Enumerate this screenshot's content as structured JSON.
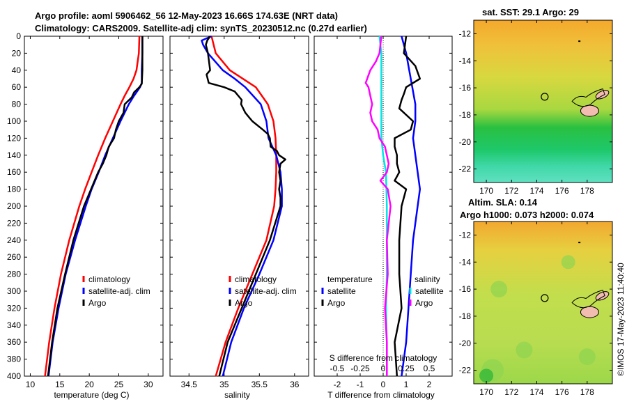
{
  "header": {
    "line1": "Argo profile: aoml 5906462_56 12-May-2023 16.66S 174.63E (NRT data)",
    "line2": "Climatology: CARS2009. Satellite-adj clim: synTS_20230512.nc (0.27d earlier)"
  },
  "colors": {
    "climatology": "#ff0000",
    "satellite": "#0000ff",
    "argo": "#000000",
    "s_diff": "#ff00ff",
    "s_sat": "#00e5e5"
  },
  "depth_axis": {
    "ticks": [
      0,
      20,
      40,
      60,
      80,
      100,
      120,
      140,
      160,
      180,
      200,
      220,
      240,
      260,
      280,
      300,
      320,
      340,
      360,
      380,
      400
    ]
  },
  "chart_data": [
    {
      "type": "line",
      "name": "temperature",
      "xlabel": "temperature (deg C)",
      "ylabel": "",
      "xlim": [
        9,
        32.5
      ],
      "ylim": [
        400,
        0
      ],
      "xticks": [
        10,
        15,
        20,
        25,
        30
      ],
      "legend": {
        "position": "lower-middle",
        "entries": [
          "climatology",
          "satellite-adj. clim",
          "Argo"
        ]
      },
      "series": [
        {
          "name": "climatology",
          "color": "#ff0000",
          "depth": [
            0,
            20,
            40,
            50,
            60,
            70,
            80,
            100,
            120,
            140,
            160,
            180,
            200,
            240,
            280,
            320,
            360,
            400
          ],
          "values": [
            28.5,
            28.4,
            28.0,
            27.5,
            26.8,
            26.0,
            25.3,
            24.0,
            22.7,
            21.5,
            20.4,
            19.3,
            18.3,
            16.6,
            15.2,
            14.1,
            13.2,
            12.5
          ]
        },
        {
          "name": "satellite-adj. clim",
          "color": "#0000ff",
          "depth": [
            0,
            20,
            40,
            55,
            60,
            70,
            80,
            100,
            120,
            140,
            160,
            180,
            200,
            240,
            280,
            320,
            360,
            400
          ],
          "values": [
            29.0,
            29.0,
            28.9,
            28.9,
            28.6,
            27.6,
            26.7,
            25.3,
            24.0,
            22.7,
            21.6,
            20.4,
            19.4,
            17.6,
            16.0,
            14.8,
            13.8,
            13.1
          ]
        },
        {
          "name": "Argo",
          "color": "#000000",
          "depth": [
            0,
            20,
            40,
            56,
            60,
            66,
            72,
            80,
            90,
            100,
            110,
            120,
            130,
            140,
            150,
            160,
            180,
            200,
            240,
            280,
            320,
            360,
            400
          ],
          "values": [
            29.0,
            29.0,
            29.0,
            28.9,
            28.5,
            27.6,
            27.2,
            26.0,
            25.8,
            25.0,
            24.5,
            24.2,
            23.3,
            22.9,
            22.3,
            21.5,
            20.3,
            19.1,
            17.3,
            15.9,
            14.6,
            13.7,
            13.0
          ]
        }
      ]
    },
    {
      "type": "line",
      "name": "salinity",
      "xlabel": "salinity",
      "ylabel": "",
      "xlim": [
        34.23,
        36.2
      ],
      "ylim": [
        400,
        0
      ],
      "xticks": [
        34.5,
        35,
        35.5,
        36
      ],
      "legend": {
        "position": "lower-middle",
        "entries": [
          "climatology",
          "satellite-adj. clim",
          "Argo"
        ]
      },
      "series": [
        {
          "name": "climatology",
          "color": "#ff0000",
          "depth": [
            0,
            20,
            40,
            60,
            80,
            100,
            120,
            140,
            160,
            180,
            200,
            240,
            280,
            320,
            360,
            400
          ],
          "values": [
            34.82,
            34.88,
            35.08,
            35.45,
            35.62,
            35.7,
            35.73,
            35.74,
            35.74,
            35.73,
            35.71,
            35.6,
            35.4,
            35.2,
            35.02,
            34.88
          ]
        },
        {
          "name": "satellite-adj. clim",
          "color": "#0000ff",
          "depth": [
            0,
            5,
            10,
            20,
            40,
            50,
            60,
            80,
            100,
            120,
            140,
            160,
            180,
            200,
            240,
            280,
            320,
            360,
            400
          ],
          "values": [
            34.82,
            34.68,
            34.7,
            34.77,
            34.98,
            35.15,
            35.3,
            35.52,
            35.6,
            35.63,
            35.74,
            35.8,
            35.82,
            35.82,
            35.7,
            35.5,
            35.28,
            35.1,
            34.98
          ]
        },
        {
          "name": "Argo",
          "color": "#000000",
          "depth": [
            0,
            5,
            10,
            20,
            40,
            45,
            55,
            60,
            65,
            75,
            80,
            90,
            95,
            100,
            110,
            115,
            120,
            130,
            135,
            140,
            145,
            150,
            160,
            170,
            180,
            190,
            200,
            240,
            280,
            320,
            360,
            400
          ],
          "values": [
            34.8,
            34.76,
            34.74,
            34.77,
            34.8,
            34.75,
            34.78,
            35.0,
            35.15,
            35.25,
            35.24,
            35.3,
            35.35,
            35.4,
            35.55,
            35.62,
            35.65,
            35.66,
            35.75,
            35.78,
            35.87,
            35.8,
            35.78,
            35.8,
            35.78,
            35.8,
            35.8,
            35.65,
            35.45,
            35.25,
            35.05,
            34.93
          ]
        }
      ]
    },
    {
      "type": "line",
      "name": "difference from climatology",
      "xlabel": "T difference from climatology",
      "top_axis_label": "S difference from climatology",
      "xlim": [
        -3,
        3
      ],
      "ylim": [
        400,
        0
      ],
      "xticks": [
        -2,
        -1,
        0,
        1,
        2
      ],
      "top_xticks": [
        -0.5,
        -0.25,
        0,
        0.25,
        0.5
      ],
      "legend": {
        "position": "lower",
        "temperature_title": "temperature",
        "salinity_title": "salinity",
        "temperature_entries": [
          "satellite",
          "Argo"
        ],
        "salinity_entries": [
          "satellite",
          "Argo"
        ]
      },
      "series": [
        {
          "name": "T satellite",
          "color": "#0000ff",
          "depth": [
            0,
            20,
            50,
            80,
            100,
            120,
            140,
            160,
            180,
            200,
            240,
            280,
            320,
            360,
            400
          ],
          "values": [
            0.8,
            1.0,
            1.2,
            1.4,
            1.4,
            1.3,
            1.4,
            1.5,
            1.6,
            1.5,
            1.3,
            1.2,
            1.1,
            1.0,
            0.8
          ]
        },
        {
          "name": "T Argo",
          "color": "#000000",
          "depth": [
            0,
            20,
            35,
            50,
            60,
            68,
            75,
            85,
            100,
            110,
            120,
            130,
            140,
            150,
            160,
            170,
            180,
            200,
            240,
            280,
            320,
            360,
            400
          ],
          "values": [
            1.0,
            0.9,
            1.4,
            1.6,
            1.0,
            0.9,
            0.8,
            0.7,
            1.3,
            1.2,
            0.5,
            0.5,
            0.6,
            0.6,
            0.7,
            0.5,
            1.0,
            0.8,
            0.7,
            0.7,
            0.8,
            0.5,
            0.6
          ]
        },
        {
          "name": "S satellite",
          "color": "#00e5e5",
          "depth": [
            0,
            20,
            50,
            80,
            100,
            120,
            140,
            160,
            200,
            240,
            280,
            320,
            360,
            400
          ],
          "values": [
            -0.04,
            -0.02,
            -0.02,
            -0.02,
            -0.02,
            -0.02,
            0.0,
            0.03,
            0.04,
            0.04,
            0.04,
            0.03,
            0.04,
            0.04
          ]
        },
        {
          "name": "S Argo",
          "color": "#ff00ff",
          "depth": [
            0,
            20,
            30,
            40,
            55,
            60,
            70,
            80,
            90,
            100,
            110,
            120,
            130,
            140,
            150,
            160,
            170,
            180,
            200,
            240,
            280,
            320,
            360,
            400
          ],
          "values": [
            -0.02,
            -0.04,
            -0.08,
            -0.14,
            -0.19,
            -0.16,
            -0.14,
            -0.12,
            -0.14,
            -0.12,
            -0.06,
            -0.04,
            0.02,
            0.04,
            0.06,
            0.04,
            -0.03,
            0.05,
            0.08,
            0.04,
            0.05,
            0.02,
            0.04,
            0.04
          ]
        }
      ]
    }
  ],
  "maps": [
    {
      "name": "sst",
      "title": "sat. SST: 29.1 Argo: 29",
      "yticks": [
        "-12",
        "-14",
        "-16",
        "-18",
        "-20",
        "-22"
      ],
      "xticks": [
        "170",
        "172",
        "174",
        "176",
        "178"
      ],
      "lat_range": [
        -23,
        -11
      ],
      "lon_range": [
        169,
        180
      ],
      "argo_position": {
        "lon": 174.63,
        "lat": -16.66
      }
    },
    {
      "name": "sla",
      "title1": "Altim. SLA: 0.14",
      "title2": "Argo h1000: 0.073 h2000: 0.074",
      "yticks": [
        "-12",
        "-14",
        "-16",
        "-18",
        "-20",
        "-22"
      ],
      "xticks": [
        "170",
        "172",
        "174",
        "176",
        "178"
      ],
      "lat_range": [
        -23,
        -11
      ],
      "lon_range": [
        169,
        180
      ],
      "argo_position": {
        "lon": 174.63,
        "lat": -16.66
      }
    }
  ],
  "stamp": "©IMOS 17-May-2023 11:40:40"
}
